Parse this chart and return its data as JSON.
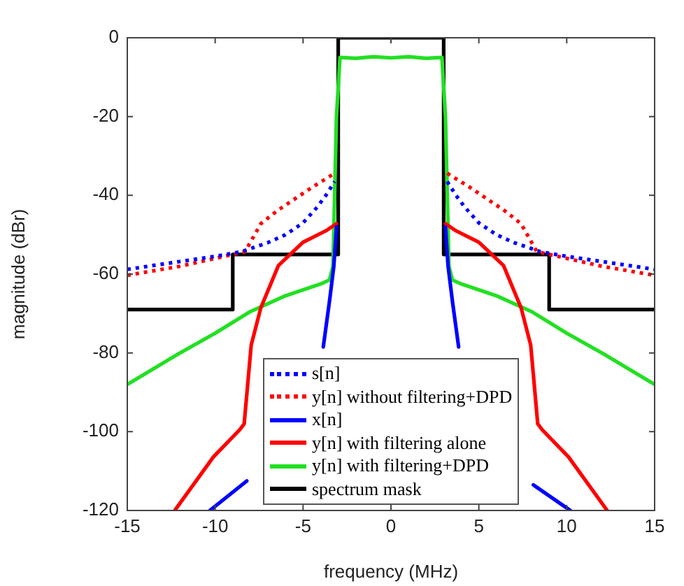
{
  "chart_data": {
    "type": "line",
    "xlabel": "frequency (MHz)",
    "ylabel": "magnitude (dBr)",
    "xlim": [
      -15,
      15
    ],
    "xticks": [
      -15,
      -10,
      -5,
      0,
      5,
      10,
      15
    ],
    "ylim": [
      -120,
      0
    ],
    "yticks": [
      -120,
      -100,
      -80,
      -60,
      -40,
      -20,
      0
    ],
    "grid": false,
    "legend": "bottom",
    "marker": "none",
    "series": [
      {
        "name": "s[n]",
        "color": "#0000ff",
        "line_style": "dotted",
        "x": [
          -15,
          -12,
          -10,
          -8.5,
          -7,
          -6,
          -5,
          -4.2,
          -3.7,
          -3.2,
          0,
          3.2,
          3.7,
          4.2,
          5,
          6,
          7,
          8.5,
          10,
          12,
          15
        ],
        "values": [
          -58.8,
          -56.8,
          -55.5,
          -54.3,
          -52,
          -50,
          -47,
          -43,
          -40,
          -36.5,
          null,
          -36.5,
          -40,
          -43,
          -47,
          -50,
          -52,
          -54.3,
          -55.5,
          -56.8,
          -58.8
        ]
      },
      {
        "name": "y[n] without filtering+DPD",
        "color": "#ff0000",
        "line_style": "dotted",
        "x": [
          -15,
          -12,
          -10,
          -8.3,
          -7.4,
          -6.5,
          -5.6,
          -4.5,
          -3.2,
          0,
          3.2,
          4.5,
          5.6,
          6.5,
          7.4,
          8.3,
          10,
          12,
          15
        ],
        "values": [
          -60.3,
          -58,
          -56,
          -54.3,
          -47.2,
          -44,
          -41.3,
          -38,
          -34.4,
          null,
          -34.4,
          -38,
          -41.3,
          -44,
          -47.2,
          -54.3,
          -56,
          -58,
          -60.3
        ]
      },
      {
        "name": "x[n]",
        "color": "#0000ff",
        "line_style": "solid",
        "x": [
          -10.3,
          -8.2,
          -6,
          -3.85,
          -3.5,
          -3.25,
          -3.1,
          0,
          3.1,
          3.25,
          3.5,
          3.85,
          6,
          8.1,
          10.2
        ],
        "values": [
          -120,
          -112.5,
          null,
          -78.5,
          -67,
          -58,
          -48,
          null,
          -48,
          -58,
          -67,
          -78.5,
          null,
          -113.5,
          -120
        ]
      },
      {
        "name": "y[n] with filtering alone",
        "color": "#ff0000",
        "line_style": "solid",
        "x": [
          -12.3,
          -10.1,
          -8.6,
          -8.35,
          -7.95,
          -7.4,
          -6.4,
          -5,
          -3.7,
          -3.1,
          0,
          3.1,
          3.7,
          5,
          6.4,
          7.4,
          7.95,
          8.35,
          8.6,
          10.1,
          12.3
        ],
        "values": [
          -120,
          -106.4,
          -99.5,
          -98,
          -78,
          -68.5,
          -57.8,
          -51.9,
          -49,
          -47.2,
          null,
          -47.2,
          -49,
          -51.9,
          -57.8,
          -68.5,
          -78,
          -98,
          -99.5,
          -106.4,
          -120
        ]
      },
      {
        "name": "y[n] with filtering+DPD",
        "color": "#22e022",
        "line_style": "solid",
        "x": [
          -15,
          -12,
          -10,
          -8,
          -6,
          -4,
          -3.5,
          -3.3,
          -3.1,
          -2.9,
          -2,
          -1,
          0,
          1,
          2,
          2.9,
          3.1,
          3.3,
          3.5,
          4,
          6,
          8,
          10,
          12,
          15
        ],
        "values": [
          -88,
          -80,
          -75,
          -69.5,
          -65.5,
          -62.5,
          -61.5,
          -58,
          -20,
          -5,
          -5.2,
          -4.8,
          -5.1,
          -4.8,
          -5.2,
          -5,
          -20,
          -58,
          -61.5,
          -62.5,
          -65.5,
          -69.5,
          -75,
          -80,
          -88
        ]
      },
      {
        "name": "spectrum mask",
        "color": "#000000",
        "line_style": "solid",
        "x": [
          -15,
          -9,
          -9,
          -3,
          -3,
          3,
          3,
          9,
          9,
          15
        ],
        "values": [
          -69,
          -69,
          -55,
          -55,
          0,
          0,
          -55,
          -55,
          -69,
          -69
        ]
      }
    ]
  }
}
